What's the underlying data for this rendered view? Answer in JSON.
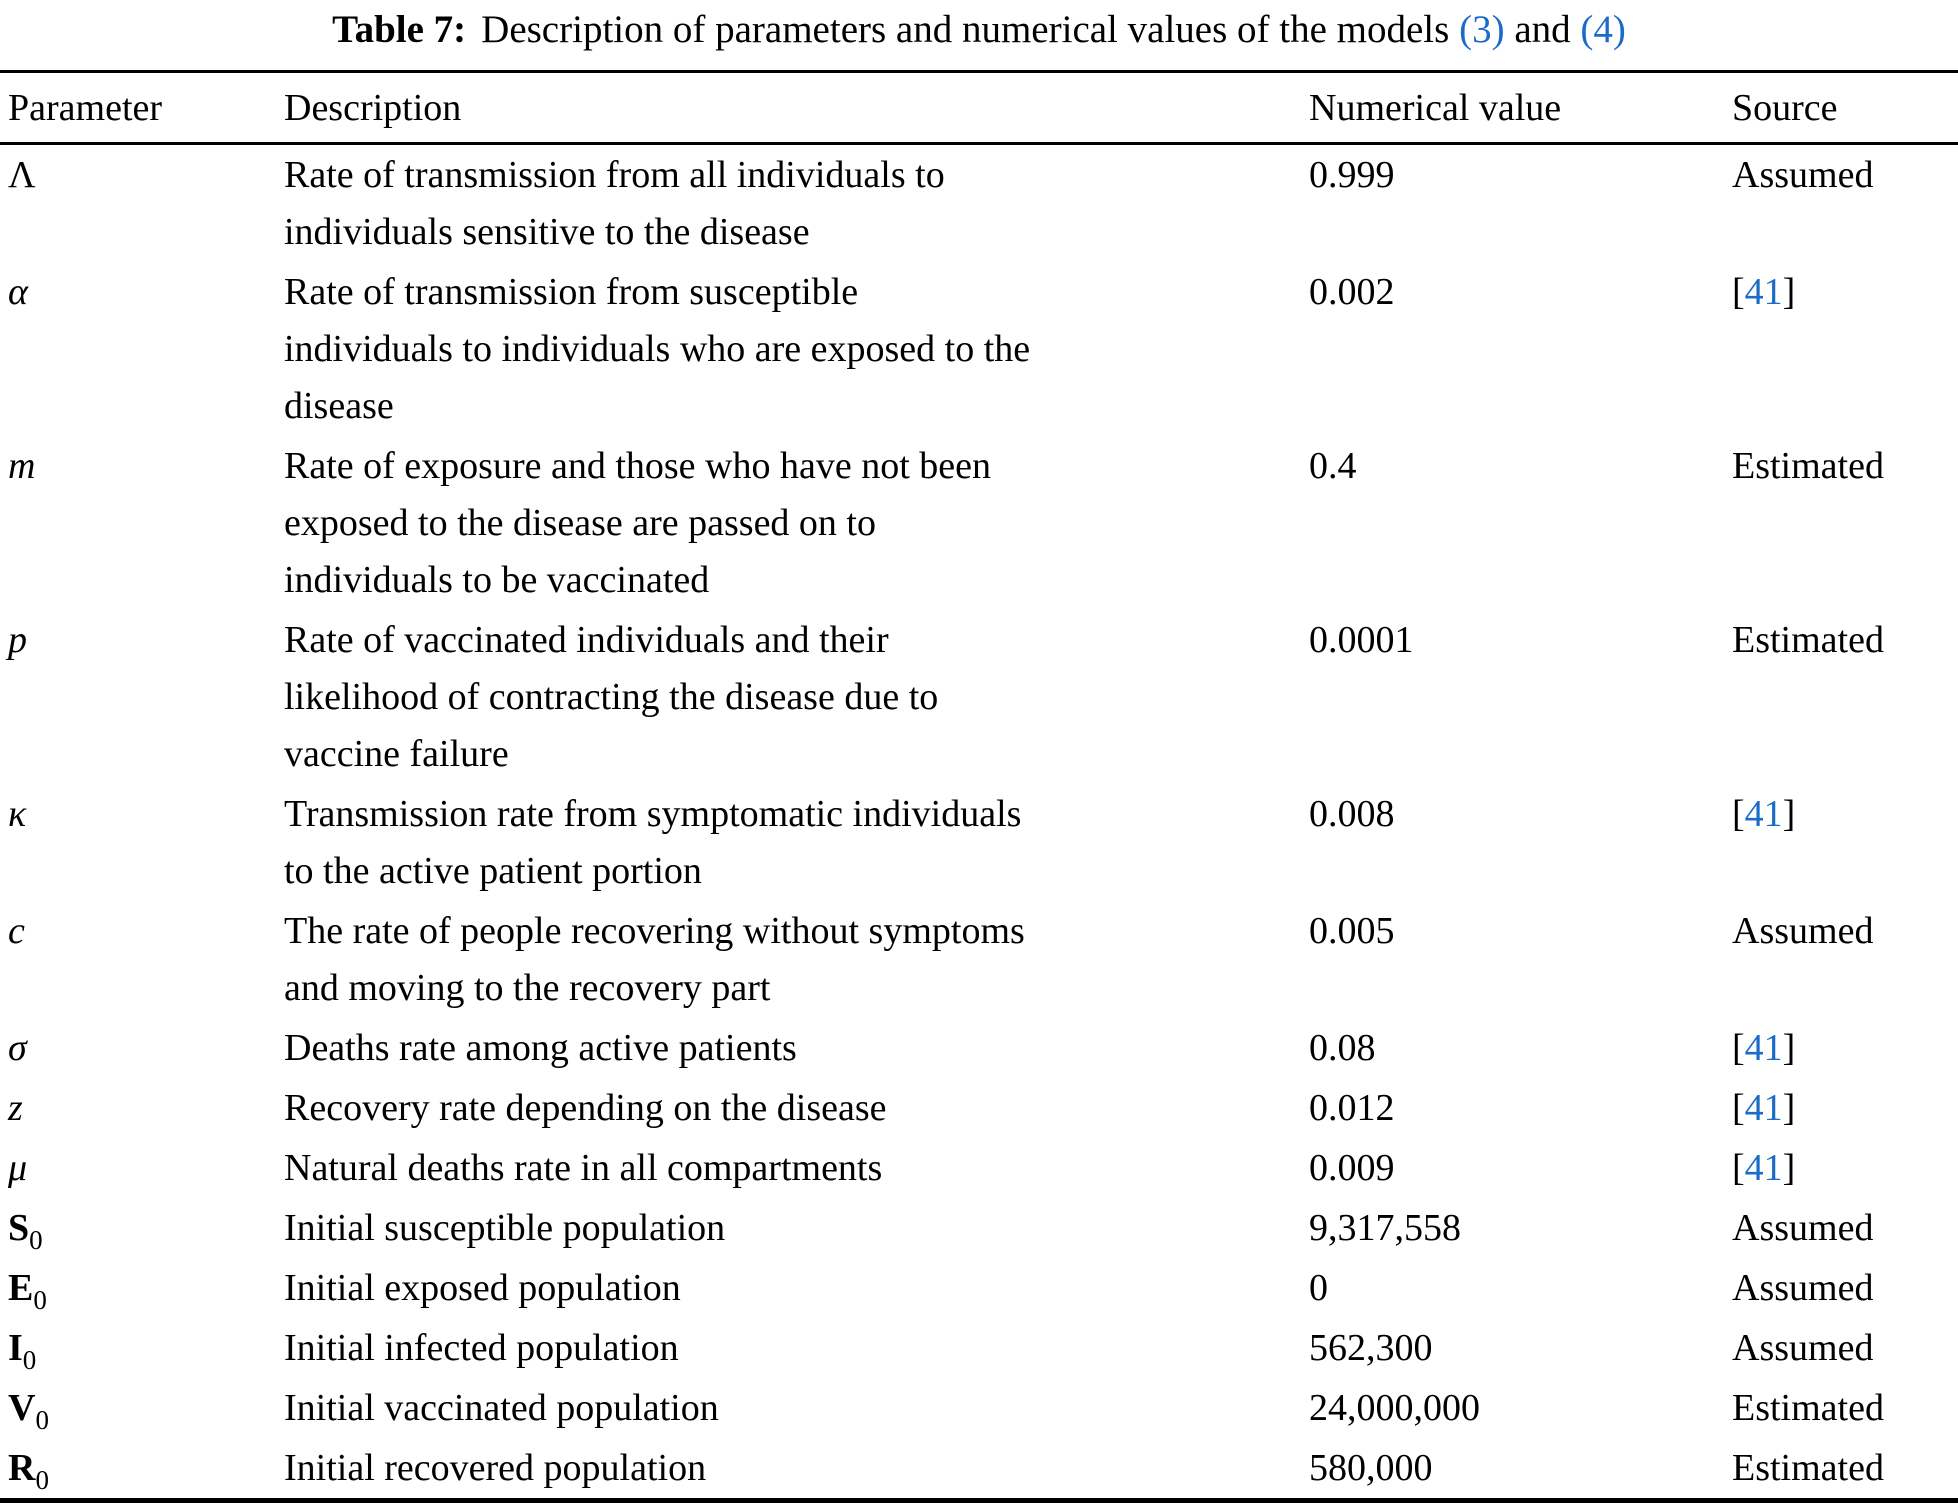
{
  "colors": {
    "link": "#1b6cc8",
    "text": "#000000",
    "background": "#ffffff"
  },
  "caption": {
    "label": "Table 7:",
    "text_before_links": "Description of parameters and numerical values of the models ",
    "link_eq3": "(3)",
    "conjunction": " and ",
    "link_eq4": "(4)"
  },
  "table": {
    "columns": [
      "Parameter",
      "Description",
      "Numerical value",
      "Source"
    ],
    "rows": [
      {
        "param": {
          "symbol": "Λ",
          "italic": false,
          "bold": false,
          "sub": ""
        },
        "description_lines": [
          "Rate of transmission from all individuals to",
          "individuals sensitive to the disease"
        ],
        "value": "0.999",
        "source": {
          "type": "text",
          "label": "Assumed"
        }
      },
      {
        "param": {
          "symbol": "α",
          "italic": true,
          "bold": false,
          "sub": ""
        },
        "description_lines": [
          "Rate of transmission from susceptible",
          "individuals to individuals who are exposed to the",
          "disease"
        ],
        "value": "0.002",
        "source": {
          "type": "cite",
          "open": "[",
          "ref": "41",
          "close": "]"
        }
      },
      {
        "param": {
          "symbol": "m",
          "italic": true,
          "bold": false,
          "sub": ""
        },
        "description_lines": [
          "Rate of exposure and those who have not been",
          "exposed to the disease are passed on to",
          "individuals to be vaccinated"
        ],
        "value": "0.4",
        "source": {
          "type": "text",
          "label": "Estimated"
        }
      },
      {
        "param": {
          "symbol": "p",
          "italic": true,
          "bold": false,
          "sub": ""
        },
        "description_lines": [
          "Rate of vaccinated individuals and their",
          "likelihood of contracting the disease due to",
          "vaccine failure"
        ],
        "value": "0.0001",
        "source": {
          "type": "text",
          "label": "Estimated"
        }
      },
      {
        "param": {
          "symbol": "κ",
          "italic": true,
          "bold": false,
          "sub": ""
        },
        "description_lines": [
          "Transmission rate from symptomatic individuals",
          "to the active patient portion"
        ],
        "value": "0.008",
        "source": {
          "type": "cite",
          "open": "[",
          "ref": "41",
          "close": "]"
        }
      },
      {
        "param": {
          "symbol": "c",
          "italic": true,
          "bold": false,
          "sub": ""
        },
        "description_lines": [
          "The rate of people recovering without symptoms",
          "and moving to the recovery part"
        ],
        "value": "0.005",
        "source": {
          "type": "text",
          "label": "Assumed"
        }
      },
      {
        "param": {
          "symbol": "σ",
          "italic": true,
          "bold": false,
          "sub": ""
        },
        "description_lines": [
          "Deaths rate among active patients"
        ],
        "value": "0.08",
        "source": {
          "type": "cite",
          "open": "[",
          "ref": "41",
          "close": "]"
        }
      },
      {
        "param": {
          "symbol": "z",
          "italic": true,
          "bold": false,
          "sub": ""
        },
        "description_lines": [
          "Recovery rate depending on the disease"
        ],
        "value": "0.012",
        "source": {
          "type": "cite",
          "open": "[",
          "ref": "41",
          "close": "]"
        }
      },
      {
        "param": {
          "symbol": "μ",
          "italic": true,
          "bold": false,
          "sub": ""
        },
        "description_lines": [
          "Natural deaths rate in all compartments"
        ],
        "value": "0.009",
        "source": {
          "type": "cite",
          "open": "[",
          "ref": "41",
          "close": "]"
        }
      },
      {
        "param": {
          "symbol": "S",
          "italic": false,
          "bold": true,
          "sub": "0"
        },
        "description_lines": [
          "Initial susceptible population"
        ],
        "value": "9,317,558",
        "source": {
          "type": "text",
          "label": "Assumed"
        }
      },
      {
        "param": {
          "symbol": "E",
          "italic": false,
          "bold": true,
          "sub": "0"
        },
        "description_lines": [
          "Initial exposed population"
        ],
        "value": "0",
        "source": {
          "type": "text",
          "label": "Assumed"
        }
      },
      {
        "param": {
          "symbol": "I",
          "italic": false,
          "bold": true,
          "sub": "0"
        },
        "description_lines": [
          "Initial infected population"
        ],
        "value": "562,300",
        "source": {
          "type": "text",
          "label": "Assumed"
        }
      },
      {
        "param": {
          "symbol": "V",
          "italic": false,
          "bold": true,
          "sub": "0"
        },
        "description_lines": [
          "Initial vaccinated population"
        ],
        "value": "24,000,000",
        "source": {
          "type": "text",
          "label": "Estimated"
        }
      },
      {
        "param": {
          "symbol": "R",
          "italic": false,
          "bold": true,
          "sub": "0"
        },
        "description_lines": [
          "Initial recovered population"
        ],
        "value": "580,000",
        "source": {
          "type": "text",
          "label": "Estimated"
        }
      }
    ]
  }
}
